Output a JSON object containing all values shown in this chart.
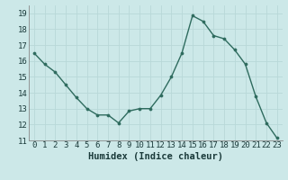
{
  "x": [
    0,
    1,
    2,
    3,
    4,
    5,
    6,
    7,
    8,
    9,
    10,
    11,
    12,
    13,
    14,
    15,
    16,
    17,
    18,
    19,
    20,
    21,
    22,
    23
  ],
  "y": [
    16.5,
    15.8,
    15.3,
    14.5,
    13.7,
    13.0,
    12.6,
    12.6,
    12.1,
    12.85,
    13.0,
    13.0,
    13.85,
    15.0,
    16.5,
    18.85,
    18.5,
    17.6,
    17.4,
    16.7,
    15.8,
    13.75,
    12.1,
    11.15
  ],
  "xlabel": "Humidex (Indice chaleur)",
  "xlim": [
    -0.5,
    23.5
  ],
  "ylim": [
    11,
    19.5
  ],
  "yticks": [
    11,
    12,
    13,
    14,
    15,
    16,
    17,
    18,
    19
  ],
  "xticks": [
    0,
    1,
    2,
    3,
    4,
    5,
    6,
    7,
    8,
    9,
    10,
    11,
    12,
    13,
    14,
    15,
    16,
    17,
    18,
    19,
    20,
    21,
    22,
    23
  ],
  "line_color": "#2e6b5e",
  "marker_color": "#2e6b5e",
  "bg_color": "#cce8e8",
  "grid_color": "#b8d8d8",
  "xlabel_fontsize": 7.5,
  "tick_fontsize": 6.5
}
